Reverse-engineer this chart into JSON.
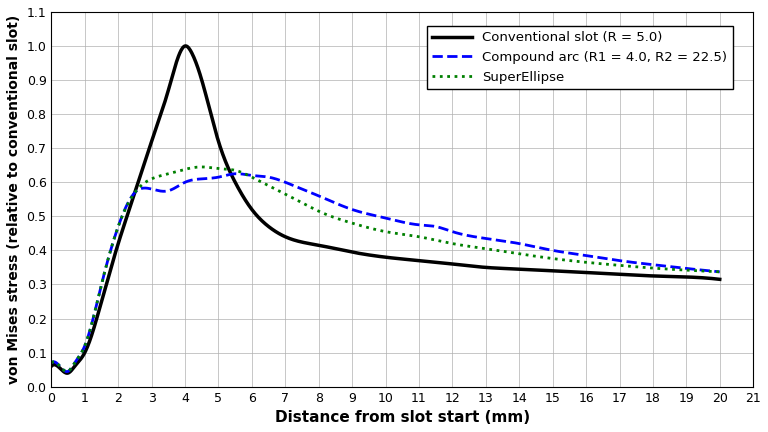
{
  "title": "",
  "xlabel": "Distance from slot start (mm)",
  "ylabel": "von Mises stress (relative to conventional slot)",
  "xlim": [
    0,
    21
  ],
  "ylim": [
    0.0,
    1.1
  ],
  "xticks": [
    0,
    1,
    2,
    3,
    4,
    5,
    6,
    7,
    8,
    9,
    10,
    11,
    12,
    13,
    14,
    15,
    16,
    17,
    18,
    19,
    20,
    21
  ],
  "yticks": [
    0.0,
    0.1,
    0.2,
    0.3,
    0.4,
    0.5,
    0.6,
    0.7,
    0.8,
    0.9,
    1.0,
    1.1
  ],
  "legend": [
    {
      "label": "Conventional slot (R = 5.0)",
      "color": "#000000",
      "linestyle": "solid",
      "linewidth": 2.5
    },
    {
      "label": "Compound arc (R1 = 4.0, R2 = 22.5)",
      "color": "#0000ff",
      "linestyle": "dashed",
      "linewidth": 2.0
    },
    {
      "label": "SuperEllipse",
      "color": "#008000",
      "linestyle": "dotted",
      "linewidth": 2.0
    }
  ],
  "conventional_x": [
    0,
    0.3,
    0.5,
    0.7,
    1.0,
    1.5,
    2.0,
    2.5,
    3.0,
    3.5,
    4.0,
    4.2,
    4.5,
    5.0,
    5.5,
    6.0,
    6.5,
    7.0,
    8.0,
    9.0,
    10.0,
    11.0,
    12.0,
    13.0,
    14.0,
    15.0,
    16.0,
    17.0,
    18.0,
    19.0,
    20.0
  ],
  "conventional_y": [
    0.06,
    0.05,
    0.04,
    0.06,
    0.1,
    0.25,
    0.42,
    0.57,
    0.72,
    0.87,
    1.0,
    0.98,
    0.9,
    0.72,
    0.6,
    0.52,
    0.47,
    0.44,
    0.415,
    0.395,
    0.38,
    0.37,
    0.36,
    0.35,
    0.345,
    0.34,
    0.335,
    0.33,
    0.325,
    0.322,
    0.315
  ],
  "compound_x": [
    0,
    0.3,
    0.5,
    0.7,
    1.0,
    1.5,
    2.0,
    2.5,
    3.0,
    3.5,
    4.0,
    4.5,
    5.0,
    5.5,
    6.0,
    6.5,
    7.0,
    7.5,
    8.0,
    9.0,
    10.0,
    11.0,
    11.5,
    12.0,
    13.0,
    14.0,
    15.0,
    16.0,
    17.0,
    18.0,
    19.0,
    20.0
  ],
  "compound_y": [
    0.07,
    0.055,
    0.045,
    0.07,
    0.12,
    0.3,
    0.47,
    0.57,
    0.58,
    0.575,
    0.6,
    0.61,
    0.615,
    0.625,
    0.62,
    0.615,
    0.6,
    0.58,
    0.56,
    0.52,
    0.495,
    0.475,
    0.47,
    0.455,
    0.435,
    0.42,
    0.4,
    0.385,
    0.37,
    0.358,
    0.347,
    0.337
  ],
  "superellipse_x": [
    0,
    0.3,
    0.5,
    0.7,
    1.0,
    1.5,
    2.0,
    2.5,
    3.0,
    3.5,
    4.0,
    4.5,
    5.0,
    5.5,
    6.0,
    6.5,
    7.0,
    7.5,
    8.0,
    9.0,
    10.0,
    11.0,
    12.0,
    13.0,
    14.0,
    15.0,
    16.0,
    17.0,
    18.0,
    19.0,
    20.0
  ],
  "superellipse_y": [
    0.07,
    0.055,
    0.045,
    0.07,
    0.12,
    0.3,
    0.47,
    0.57,
    0.61,
    0.625,
    0.638,
    0.645,
    0.64,
    0.635,
    0.615,
    0.59,
    0.565,
    0.54,
    0.515,
    0.48,
    0.455,
    0.44,
    0.42,
    0.405,
    0.39,
    0.376,
    0.365,
    0.356,
    0.348,
    0.342,
    0.337
  ],
  "background_color": "#ffffff",
  "grid_color": "#b0b0b0"
}
